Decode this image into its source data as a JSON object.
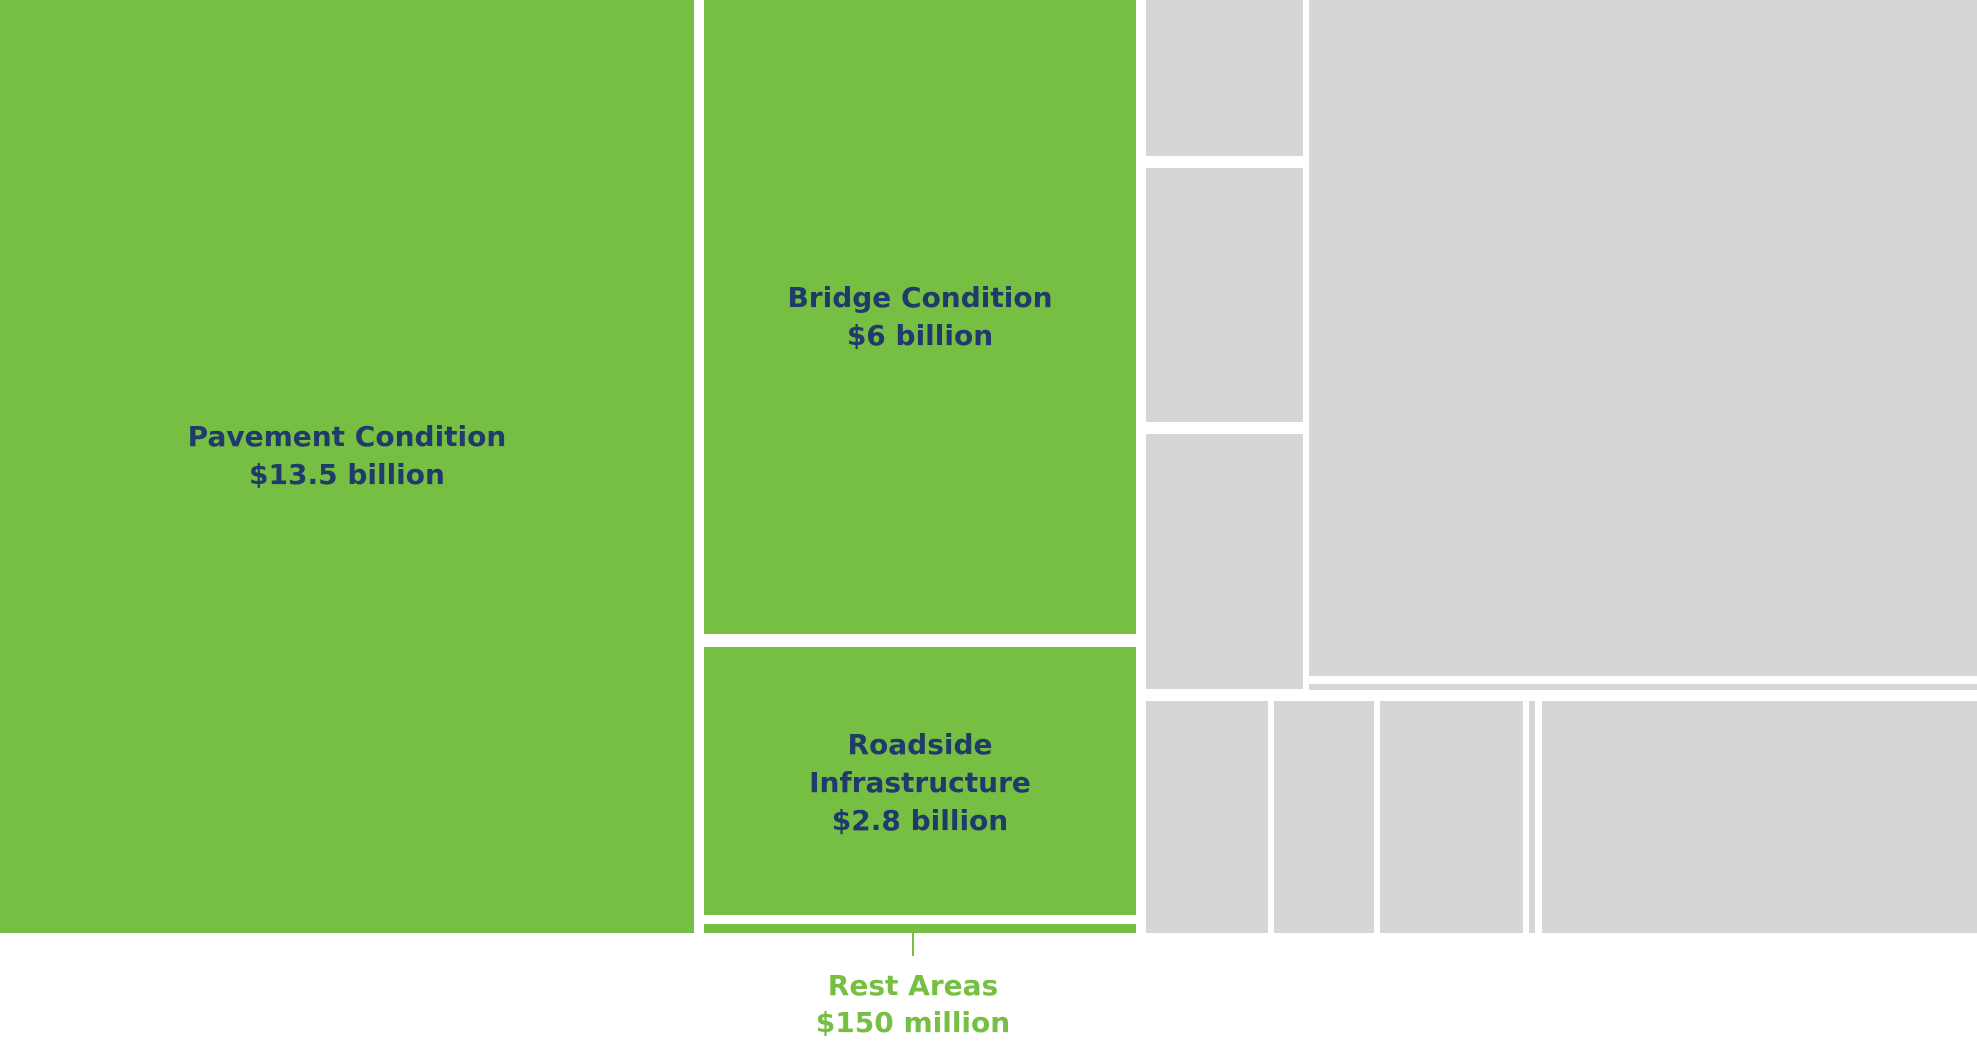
{
  "chart_data": {
    "type": "treemap",
    "highlight_color": "#76bf43",
    "other_color": "#d5d6d8",
    "label_color": "#1f3a6b",
    "items": [
      {
        "id": "pavement",
        "name": "Pavement Condition",
        "value_label": "$13.5 billion",
        "value": 13.5,
        "unit": "billion",
        "highlighted": true
      },
      {
        "id": "bridge",
        "name": "Bridge Condition",
        "value_label": "$6 billion",
        "value": 6,
        "unit": "billion",
        "highlighted": true
      },
      {
        "id": "roadside",
        "name": "Roadside Infrastructure",
        "name_lines": [
          "Roadside",
          "Infrastructure"
        ],
        "value_label": "$2.8 billion",
        "value": 2.8,
        "unit": "billion",
        "highlighted": true
      },
      {
        "id": "rest",
        "name": "Rest Areas",
        "value_label": "$150 million",
        "value": 0.15,
        "unit": "billion",
        "highlighted": true,
        "label_outside": true
      }
    ],
    "unlabeled_items_count": 10
  }
}
